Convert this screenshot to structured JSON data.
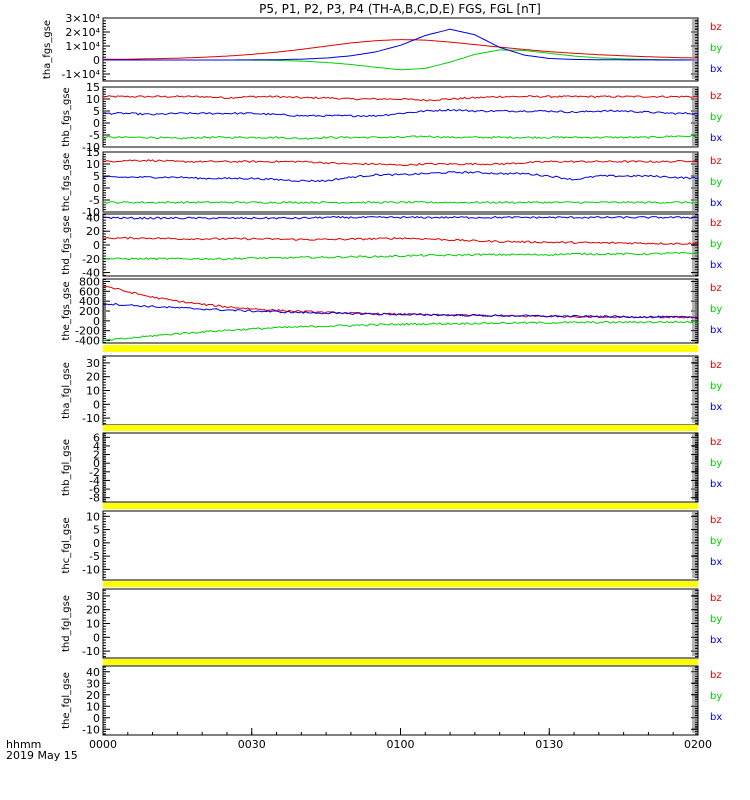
{
  "title": "P5, P1, P2, P3, P4 (TH-A,B,C,D,E) FGS, FGL [nT]",
  "bottom_label": "hhmm",
  "date_label": "2019 May 15",
  "colors": {
    "bz": "#e00000",
    "by": "#00d000",
    "bx": "#0000e0",
    "flag": "#ffff00"
  },
  "chart_data": [
    {
      "type": "line",
      "ylabel": "tha_fgs_gse",
      "ylim": [
        -15000,
        30000
      ],
      "yticks": [
        -10000,
        0,
        10000,
        20000,
        30000
      ],
      "yticklabels": [
        "-1×10⁴",
        "0",
        "1×10⁴",
        "2×10⁴",
        "3×10⁴"
      ],
      "x": [
        "0000",
        "0005",
        "0010",
        "0015",
        "0020",
        "0025",
        "0030",
        "0035",
        "0040",
        "0045",
        "0050",
        "0055",
        "0100",
        "0105",
        "0110",
        "0115",
        "0120",
        "0125",
        "0130",
        "0135",
        "0140",
        "0145",
        "0150",
        "0155",
        "0200"
      ],
      "series": [
        {
          "name": "bz",
          "values": [
            500,
            600,
            900,
            1300,
            1900,
            2800,
            4000,
            5600,
            7600,
            9900,
            12200,
            13800,
            14600,
            14200,
            12800,
            11000,
            9200,
            7500,
            6000,
            4800,
            3800,
            3000,
            2300,
            1800,
            1400
          ]
        },
        {
          "name": "by",
          "values": [
            0,
            0,
            0,
            0,
            0,
            0,
            -100,
            -300,
            -800,
            -1700,
            -3200,
            -5200,
            -7000,
            -6000,
            -1500,
            4000,
            7200,
            6800,
            4800,
            2800,
            1500,
            800,
            400,
            200,
            0
          ]
        },
        {
          "name": "bx",
          "values": [
            0,
            0,
            0,
            0,
            0,
            0,
            100,
            200,
            600,
            1400,
            3000,
            5800,
            10500,
            17500,
            22000,
            18000,
            9000,
            3500,
            1100,
            400,
            200,
            100,
            50,
            0,
            0
          ]
        }
      ]
    },
    {
      "type": "line",
      "ylabel": "thb_fgs_gse",
      "ylim": [
        -10,
        15
      ],
      "yticks": [
        -10,
        -5,
        0,
        5,
        10,
        15
      ],
      "yticklabels": [
        "-10",
        "-5",
        "0",
        "5",
        "10",
        "15"
      ],
      "x": [
        "0000",
        "0005",
        "0010",
        "0015",
        "0020",
        "0025",
        "0030",
        "0035",
        "0040",
        "0045",
        "0050",
        "0055",
        "0100",
        "0105",
        "0110",
        "0115",
        "0120",
        "0125",
        "0130",
        "0135",
        "0140",
        "0145",
        "0150",
        "0155",
        "0200"
      ],
      "series": [
        {
          "name": "bz",
          "values": [
            11,
            11,
            11,
            11,
            11,
            10.5,
            11,
            11,
            10.5,
            10.5,
            10,
            10,
            10,
            9.5,
            10,
            10.5,
            11,
            11,
            11,
            11,
            11,
            11,
            11,
            11,
            11
          ]
        },
        {
          "name": "by",
          "values": [
            -6,
            -6,
            -6,
            -6.5,
            -6,
            -6,
            -6,
            -6,
            -6.5,
            -6,
            -6,
            -6,
            -6,
            -5.5,
            -6,
            -6,
            -6,
            -6,
            -6,
            -6,
            -6,
            -6,
            -6,
            -5.5,
            -5.5
          ]
        },
        {
          "name": "bx",
          "values": [
            4,
            4,
            3.5,
            4,
            4,
            4,
            4,
            3.5,
            3,
            3,
            3,
            3,
            4,
            5,
            5.5,
            5,
            5,
            5,
            5,
            4.5,
            5,
            5,
            4.5,
            4,
            4
          ]
        }
      ]
    },
    {
      "type": "line",
      "ylabel": "thc_fgs_gse",
      "ylim": [
        -10,
        15
      ],
      "yticks": [
        -10,
        -5,
        0,
        5,
        10,
        15
      ],
      "yticklabels": [
        "-10",
        "-5",
        "0",
        "5",
        "10",
        "15"
      ],
      "x": [
        "0000",
        "0005",
        "0010",
        "0015",
        "0020",
        "0025",
        "0030",
        "0035",
        "0040",
        "0045",
        "0050",
        "0055",
        "0100",
        "0105",
        "0110",
        "0115",
        "0120",
        "0125",
        "0130",
        "0135",
        "0140",
        "0145",
        "0150",
        "0155",
        "0200"
      ],
      "series": [
        {
          "name": "bz",
          "values": [
            11,
            11.5,
            11.5,
            11,
            11,
            11,
            11,
            11,
            11,
            10.5,
            10,
            10,
            9.5,
            10,
            10,
            10,
            10,
            10.5,
            11,
            11,
            11,
            11,
            11,
            11,
            11.5
          ]
        },
        {
          "name": "by",
          "values": [
            -6,
            -6,
            -6,
            -6,
            -6,
            -6,
            -6,
            -6,
            -6,
            -6,
            -6,
            -6,
            -6,
            -6,
            -6,
            -6,
            -6,
            -6,
            -6,
            -6,
            -6,
            -6,
            -6,
            -6,
            -6
          ]
        },
        {
          "name": "bx",
          "values": [
            4.5,
            4.5,
            4.5,
            4.5,
            4,
            4,
            4,
            3.5,
            3,
            3,
            4.5,
            5.5,
            5.5,
            6,
            6.5,
            6.5,
            6,
            6,
            5,
            3.5,
            5,
            5,
            5,
            4.5,
            4
          ]
        }
      ]
    },
    {
      "type": "line",
      "ylabel": "thd_fgs_gse",
      "ylim": [
        -45,
        45
      ],
      "yticks": [
        -40,
        -20,
        0,
        20,
        40
      ],
      "yticklabels": [
        "-40",
        "-20",
        "0",
        "20",
        "40"
      ],
      "x": [
        "0000",
        "0005",
        "0010",
        "0015",
        "0020",
        "0025",
        "0030",
        "0035",
        "0040",
        "0045",
        "0050",
        "0055",
        "0100",
        "0105",
        "0110",
        "0115",
        "0120",
        "0125",
        "0130",
        "0135",
        "0140",
        "0145",
        "0150",
        "0155",
        "0200"
      ],
      "series": [
        {
          "name": "bz",
          "values": [
            10,
            10,
            10,
            9,
            9,
            9,
            9,
            8.5,
            8,
            8,
            8.5,
            9,
            10,
            9,
            7.5,
            6,
            5,
            4.5,
            4,
            3.5,
            3,
            3,
            2.5,
            2,
            2
          ]
        },
        {
          "name": "by",
          "values": [
            -20,
            -20,
            -20,
            -20,
            -20,
            -20,
            -19,
            -19,
            -18,
            -18,
            -17,
            -17,
            -16,
            -15,
            -15,
            -14,
            -14,
            -14,
            -14,
            -13,
            -13,
            -13,
            -13,
            -12,
            -12
          ]
        },
        {
          "name": "bx",
          "values": [
            40,
            39,
            39,
            39,
            39,
            39,
            39,
            39,
            39,
            40,
            40,
            40,
            40,
            40,
            40,
            40,
            40,
            40,
            40,
            40,
            40,
            40,
            40,
            40,
            40
          ]
        }
      ]
    },
    {
      "type": "line",
      "ylabel": "the_fgs_gse",
      "ylim": [
        -450,
        850
      ],
      "yticks": [
        -400,
        -200,
        0,
        200,
        400,
        600,
        800
      ],
      "yticklabels": [
        "-400",
        "-200",
        "0",
        "200",
        "400",
        "600",
        "800"
      ],
      "x": [
        "0000",
        "0005",
        "0010",
        "0015",
        "0020",
        "0025",
        "0030",
        "0035",
        "0040",
        "0045",
        "0050",
        "0055",
        "0100",
        "0105",
        "0110",
        "0115",
        "0120",
        "0125",
        "0130",
        "0135",
        "0140",
        "0145",
        "0150",
        "0155",
        "0200"
      ],
      "series": [
        {
          "name": "bz",
          "values": [
            720,
            590,
            480,
            400,
            335,
            285,
            245,
            215,
            190,
            170,
            155,
            142,
            132,
            122,
            115,
            108,
            102,
            97,
            92,
            88,
            84,
            81,
            78,
            75,
            72
          ]
        },
        {
          "name": "by",
          "values": [
            -400,
            -355,
            -305,
            -260,
            -225,
            -190,
            -165,
            -140,
            -122,
            -105,
            -93,
            -80,
            -70,
            -62,
            -56,
            -50,
            -45,
            -41,
            -37,
            -34,
            -31,
            -28,
            -26,
            -24,
            -22
          ]
        },
        {
          "name": "bx",
          "values": [
            350,
            320,
            290,
            265,
            240,
            220,
            200,
            185,
            170,
            158,
            148,
            140,
            132,
            125,
            118,
            112,
            106,
            101,
            96,
            91,
            87,
            83,
            80,
            76,
            73
          ]
        }
      ]
    },
    {
      "type": "line",
      "ylabel": "tha_fgl_gse",
      "ylim": [
        -15,
        35
      ],
      "yticks": [
        -10,
        0,
        10,
        20,
        30
      ],
      "yticklabels": [
        "-10",
        "0",
        "10",
        "20",
        "30"
      ],
      "series": []
    },
    {
      "type": "line",
      "ylabel": "thb_fgl_gse",
      "ylim": [
        -9,
        7
      ],
      "yticks": [
        -8,
        -6,
        -4,
        -2,
        0,
        2,
        4,
        6
      ],
      "yticklabels": [
        "-8",
        "-6",
        "-4",
        "-2",
        "0",
        "2",
        "4",
        "6"
      ],
      "series": []
    },
    {
      "type": "line",
      "ylabel": "thc_fgl_gse",
      "ylim": [
        -14,
        12
      ],
      "yticks": [
        -10,
        -5,
        0,
        5,
        10
      ],
      "yticklabels": [
        "-10",
        "-5",
        "0",
        "5",
        "10"
      ],
      "series": []
    },
    {
      "type": "line",
      "ylabel": "thd_fgl_gse",
      "ylim": [
        -15,
        35
      ],
      "yticks": [
        -10,
        0,
        10,
        20,
        30
      ],
      "yticklabels": [
        "-10",
        "0",
        "10",
        "20",
        "30"
      ],
      "series": []
    },
    {
      "type": "line",
      "ylabel": "the_fgl_gse",
      "ylim": [
        -15,
        45
      ],
      "yticks": [
        -10,
        0,
        10,
        20,
        30,
        40
      ],
      "yticklabels": [
        "-10",
        "0",
        "10",
        "20",
        "30",
        "40"
      ],
      "series": []
    }
  ],
  "legend": [
    "bz",
    "by",
    "bx"
  ],
  "xticks": [
    "0000",
    "0030",
    "0100",
    "0130",
    "0200"
  ]
}
